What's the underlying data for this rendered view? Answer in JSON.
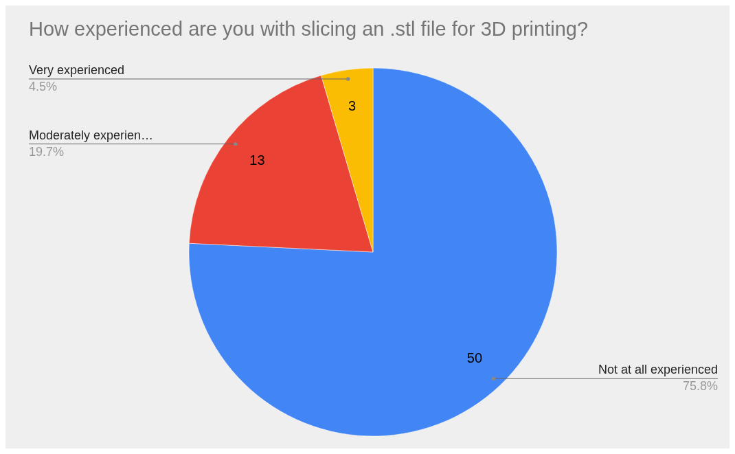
{
  "chart_data": {
    "type": "pie",
    "title": "How experienced are you with slicing an .stl file for 3D printing?",
    "categories": [
      "Not at all experienced",
      "Moderately experien…",
      "Very experienced"
    ],
    "values": [
      50,
      13,
      3
    ],
    "colors": [
      "#4285f4",
      "#ea4335",
      "#fbbc04"
    ],
    "data_labels": true,
    "annotations": [
      "75.8%",
      "19.7%",
      "4.5%"
    ]
  }
}
